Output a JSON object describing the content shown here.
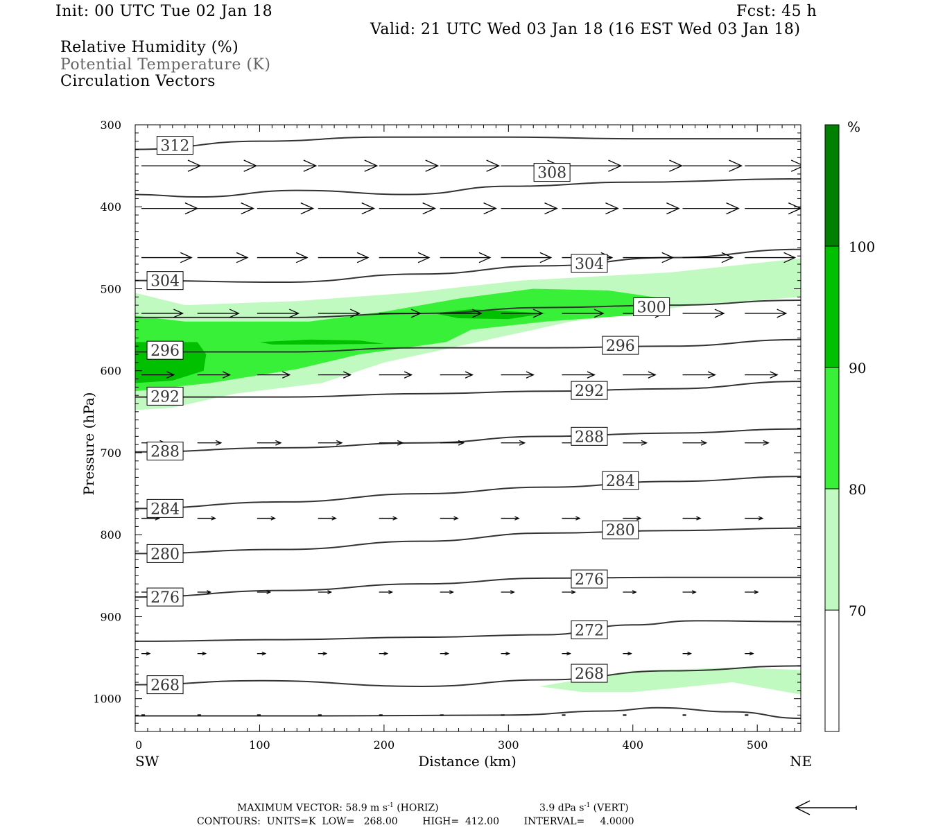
{
  "header": {
    "init": "Init: 00 UTC Tue 02 Jan 18",
    "fcst": "Fcst:   45 h",
    "valid": "Valid: 21 UTC Wed 03 Jan 18 (16 EST Wed 03 Jan 18)"
  },
  "legend_lines": {
    "rh": "Relative Humidity (%)",
    "theta": "Potential Temperature (K)",
    "vectors": "Circulation Vectors"
  },
  "colors": {
    "rh_70_80": "#c0fac0",
    "rh_80_90": "#38f038",
    "rh_90_100": "#00c000",
    "rh_100plus": "#008000",
    "contour": "#333333",
    "vector": "#000000"
  },
  "colorbar": {
    "unit": "%",
    "levels": [
      "100",
      "90",
      "80",
      "70"
    ]
  },
  "chart_data": {
    "type": "contour",
    "xlabel": "Distance (km)",
    "ylabel": "Pressure (hPa)",
    "xlim": [
      0,
      535
    ],
    "ylim": [
      1040,
      300
    ],
    "x_ticks": [
      0,
      100,
      200,
      300,
      400,
      500
    ],
    "y_ticks": [
      300,
      400,
      500,
      600,
      700,
      800,
      900,
      1000
    ],
    "x_end_labels": {
      "left": "SW",
      "right": "NE"
    },
    "theta_contours": [
      {
        "label": "312",
        "label_at": [
          32,
          325
        ],
        "pts": [
          [
            0,
            330
          ],
          [
            100,
            320
          ],
          [
            200,
            315
          ],
          [
            300,
            315
          ],
          [
            400,
            317
          ],
          [
            535,
            317
          ]
        ]
      },
      {
        "label": "308",
        "label_at": [
          335,
          358
        ],
        "pts": [
          [
            0,
            385
          ],
          [
            50,
            388
          ],
          [
            130,
            380
          ],
          [
            220,
            385
          ],
          [
            300,
            375
          ],
          [
            400,
            370
          ],
          [
            535,
            366
          ]
        ]
      },
      {
        "label": "304",
        "label_at": [
          24,
          490
        ],
        "pts": [
          [
            0,
            490
          ],
          [
            120,
            492
          ],
          [
            230,
            482
          ],
          [
            330,
            472
          ],
          [
            430,
            462
          ],
          [
            535,
            452
          ]
        ]
      },
      {
        "label": "304",
        "label_at": [
          365,
          469
        ]
      },
      {
        "label": "300",
        "label_at": [
          415,
          522
        ],
        "pts": [
          [
            0,
            535
          ],
          [
            120,
            535
          ],
          [
            230,
            530
          ],
          [
            330,
            523
          ],
          [
            430,
            520
          ],
          [
            535,
            514
          ]
        ]
      },
      {
        "label": "296",
        "label_at": [
          24,
          575
        ],
        "pts": [
          [
            0,
            577
          ],
          [
            120,
            577
          ],
          [
            230,
            572
          ],
          [
            330,
            572
          ],
          [
            430,
            570
          ],
          [
            535,
            562
          ]
        ]
      },
      {
        "label": "296",
        "label_at": [
          390,
          569
        ]
      },
      {
        "label": "292",
        "label_at": [
          24,
          631
        ],
        "pts": [
          [
            0,
            632
          ],
          [
            120,
            632
          ],
          [
            230,
            628
          ],
          [
            330,
            625
          ],
          [
            430,
            622
          ],
          [
            535,
            613
          ]
        ]
      },
      {
        "label": "292",
        "label_at": [
          365,
          624
        ]
      },
      {
        "label": "288",
        "label_at": [
          24,
          698
        ],
        "pts": [
          [
            0,
            699
          ],
          [
            120,
            694
          ],
          [
            230,
            688
          ],
          [
            330,
            680
          ],
          [
            430,
            676
          ],
          [
            535,
            671
          ]
        ]
      },
      {
        "label": "288",
        "label_at": [
          365,
          680
        ]
      },
      {
        "label": "284",
        "label_at": [
          24,
          768
        ],
        "pts": [
          [
            0,
            768
          ],
          [
            120,
            760
          ],
          [
            230,
            750
          ],
          [
            330,
            742
          ],
          [
            430,
            735
          ],
          [
            535,
            729
          ]
        ]
      },
      {
        "label": "284",
        "label_at": [
          390,
          734
        ]
      },
      {
        "label": "280",
        "label_at": [
          24,
          823
        ],
        "pts": [
          [
            0,
            823
          ],
          [
            120,
            818
          ],
          [
            230,
            808
          ],
          [
            330,
            798
          ],
          [
            430,
            795
          ],
          [
            535,
            792
          ]
        ]
      },
      {
        "label": "280",
        "label_at": [
          390,
          794
        ]
      },
      {
        "label": "276",
        "label_at": [
          24,
          876
        ],
        "pts": [
          [
            0,
            876
          ],
          [
            120,
            868
          ],
          [
            230,
            860
          ],
          [
            330,
            853
          ],
          [
            430,
            852
          ],
          [
            535,
            852
          ]
        ]
      },
      {
        "label": "276",
        "label_at": [
          365,
          854
        ]
      },
      {
        "label": "272",
        "label_at": [
          365,
          916
        ],
        "pts": [
          [
            0,
            930
          ],
          [
            120,
            928
          ],
          [
            230,
            925
          ],
          [
            330,
            922
          ],
          [
            400,
            910
          ],
          [
            450,
            905
          ],
          [
            535,
            906
          ]
        ]
      },
      {
        "label": "268",
        "label_at": [
          24,
          983
        ],
        "pts": [
          [
            0,
            983
          ],
          [
            100,
            978
          ],
          [
            230,
            985
          ],
          [
            330,
            977
          ],
          [
            430,
            966
          ],
          [
            535,
            960
          ]
        ]
      },
      {
        "label": "268",
        "label_at": [
          365,
          969
        ]
      },
      {
        "label": "",
        "pts": [
          [
            0,
            1021
          ],
          [
            150,
            1021
          ],
          [
            300,
            1020
          ],
          [
            380,
            1015
          ],
          [
            420,
            1011
          ],
          [
            480,
            1016
          ],
          [
            535,
            1024
          ]
        ]
      }
    ],
    "rh_shading": [
      {
        "level": "70-80",
        "color": "#c0fac0",
        "pts": [
          [
            0,
            505
          ],
          [
            40,
            520
          ],
          [
            130,
            515
          ],
          [
            220,
            505
          ],
          [
            310,
            490
          ],
          [
            430,
            480
          ],
          [
            535,
            463
          ],
          [
            535,
            510
          ],
          [
            450,
            520
          ],
          [
            350,
            540
          ],
          [
            260,
            570
          ],
          [
            200,
            590
          ],
          [
            150,
            615
          ],
          [
            80,
            628
          ],
          [
            30,
            645
          ],
          [
            0,
            648
          ]
        ]
      },
      {
        "level": "70-80",
        "color": "#c0fac0",
        "pts": [
          [
            325,
            985
          ],
          [
            400,
            966
          ],
          [
            480,
            962
          ],
          [
            535,
            965
          ],
          [
            535,
            995
          ],
          [
            480,
            980
          ],
          [
            400,
            992
          ],
          [
            360,
            992
          ]
        ]
      },
      {
        "level": "80-90",
        "color": "#38f038",
        "pts": [
          [
            0,
            533
          ],
          [
            40,
            540
          ],
          [
            140,
            540
          ],
          [
            200,
            528
          ],
          [
            260,
            512
          ],
          [
            320,
            500
          ],
          [
            380,
            502
          ],
          [
            430,
            513
          ],
          [
            420,
            530
          ],
          [
            330,
            540
          ],
          [
            270,
            550
          ],
          [
            250,
            565
          ],
          [
            180,
            580
          ],
          [
            130,
            598
          ],
          [
            60,
            615
          ],
          [
            0,
            625
          ]
        ]
      },
      {
        "level": "90-100",
        "color": "#00c000",
        "pts": [
          [
            0,
            565
          ],
          [
            50,
            565
          ],
          [
            57,
            580
          ],
          [
            55,
            600
          ],
          [
            30,
            612
          ],
          [
            0,
            615
          ]
        ]
      },
      {
        "level": "90-100",
        "color": "#00c000",
        "pts": [
          [
            240,
            530
          ],
          [
            270,
            525
          ],
          [
            330,
            530
          ],
          [
            300,
            537
          ],
          [
            260,
            536
          ]
        ]
      },
      {
        "level": "90-100",
        "color": "#00c000",
        "pts": [
          [
            100,
            565
          ],
          [
            140,
            562
          ],
          [
            180,
            563
          ],
          [
            200,
            567
          ],
          [
            150,
            568
          ],
          [
            110,
            568
          ]
        ]
      }
    ],
    "vector_rows": [
      {
        "p": 350,
        "u": 1.0,
        "w": 0.0
      },
      {
        "p": 402,
        "u": 0.95,
        "w": 0.0
      },
      {
        "p": 462,
        "u": 0.85,
        "w": 0.0
      },
      {
        "p": 530,
        "u": 0.7,
        "w": 0.0
      },
      {
        "p": 605,
        "u": 0.55,
        "w": 0.0
      },
      {
        "p": 688,
        "u": 0.4,
        "w": 0.0
      },
      {
        "p": 780,
        "u": 0.3,
        "w": 0.0
      },
      {
        "p": 870,
        "u": 0.22,
        "w": 0.0
      },
      {
        "p": 945,
        "u": 0.14,
        "w": 0.0
      },
      {
        "p": 1020,
        "u": 0.06,
        "w": 0.0
      }
    ],
    "vector_x": [
      5,
      50,
      98,
      147,
      196,
      245,
      294,
      343,
      392,
      440,
      490
    ]
  },
  "footer": {
    "max_vector_a": "MAXIMUM VECTOR:  58.9 m s",
    "max_vector_a_sup": "-1",
    "max_vector_b": " (HORIZ)",
    "vert_a": "3.9 dPa s",
    "vert_sup": "-1",
    "vert_b": " (VERT)",
    "contours": "CONTOURS:  UNITS=K  LOW=   268.00        HIGH=  412.00        INTERVAL=     4.0000"
  }
}
